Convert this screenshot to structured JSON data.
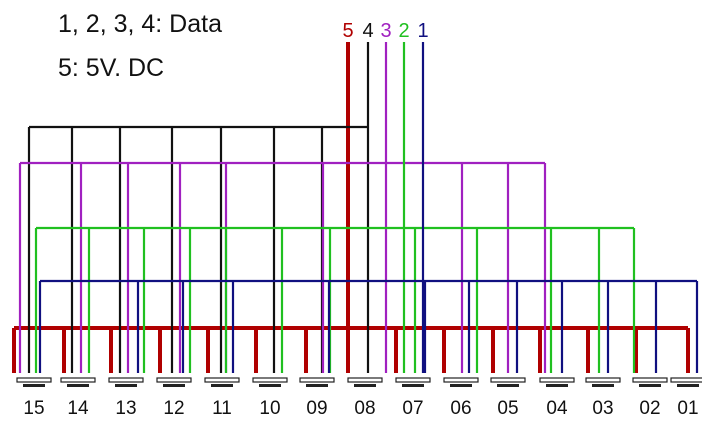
{
  "legend": {
    "line1": "1, 2, 3, 4: Data",
    "line2": "5: 5V. DC"
  },
  "wires": [
    {
      "label": "5",
      "color": "#b00000"
    },
    {
      "label": "4",
      "color": "#111111"
    },
    {
      "label": "3",
      "color": "#a020c0"
    },
    {
      "label": "2",
      "color": "#20c020"
    },
    {
      "label": "1",
      "color": "#101080"
    }
  ],
  "connectors": [
    "15",
    "14",
    "13",
    "12",
    "11",
    "10",
    "09",
    "08",
    "07",
    "06",
    "05",
    "04",
    "03",
    "02",
    "01"
  ]
}
